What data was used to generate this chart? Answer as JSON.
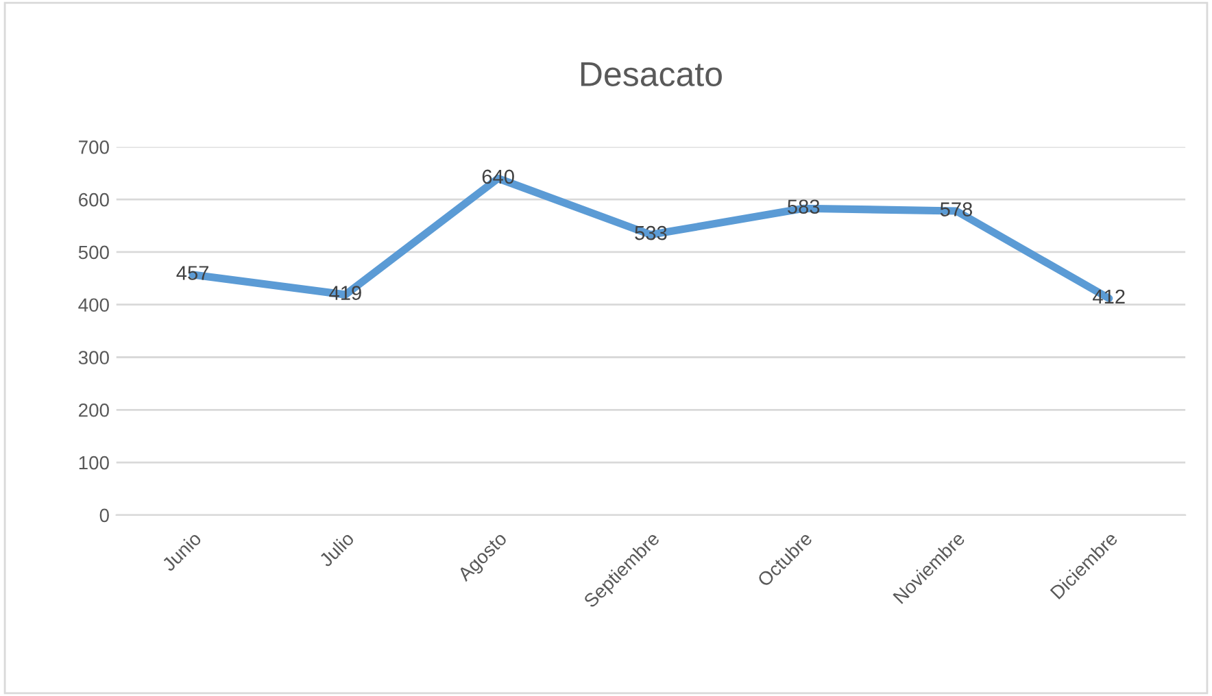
{
  "chart_data": {
    "type": "line",
    "title": "Desacato",
    "categories": [
      "Junio",
      "Julio",
      "Agosto",
      "Septiembre",
      "Octubre",
      "Noviembre",
      "Diciembre"
    ],
    "values": [
      457,
      419,
      640,
      533,
      583,
      578,
      412
    ],
    "color": "#5b9bd5",
    "ylim": [
      0,
      700
    ],
    "yticks": [
      0,
      100,
      200,
      300,
      400,
      500,
      600,
      700
    ],
    "grid": "y",
    "legend": false,
    "marker": "none",
    "line_style": "solid",
    "data_labels": true
  }
}
